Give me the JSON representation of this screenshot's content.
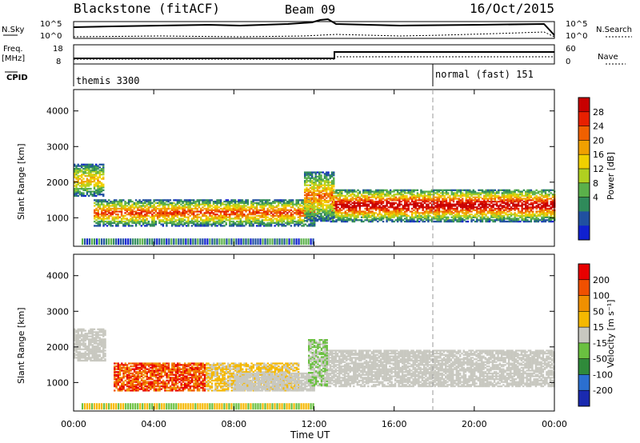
{
  "header": {
    "title": "Blackstone (fitACF)",
    "beam": "Beam 09",
    "date": "16/Oct/2015"
  },
  "top_panels": {
    "nsky_label": "N.Sky",
    "nsky_ticks": [
      "10^5",
      "10^0"
    ],
    "nsearch_label": "N.Search",
    "nsearch_ticks": [
      "10^5",
      "10^0"
    ],
    "freq_label": "Freq.",
    "freq_unit": "[MHz]",
    "freq_ticks": [
      "18",
      "8"
    ],
    "nave_label": "Nave",
    "nave_ticks": [
      "60",
      "0"
    ],
    "cpid_label": "CPID",
    "cpid_segments": [
      {
        "label": "themis 3300",
        "start_hour": 0
      },
      {
        "label": "normal (fast) 151",
        "start_hour": 18
      }
    ]
  },
  "chart_data": [
    {
      "type": "heatmap",
      "title": "",
      "ylabel": "Slant Range [km]",
      "xlabel": "",
      "yticks": [
        1000,
        2000,
        3000,
        4000
      ],
      "ylim": [
        200,
        4600
      ],
      "xlim": [
        0,
        24
      ],
      "colorbar": {
        "label": "Power [dB]",
        "ticks": [
          "4",
          "8",
          "12",
          "16",
          "20",
          "24",
          "28"
        ],
        "colors": [
          "#1020d0",
          "#2050a0",
          "#2f8a5a",
          "#5ab04a",
          "#b0d020",
          "#f0d000",
          "#f0a000",
          "#f06000",
          "#e82000",
          "#c80000"
        ]
      },
      "bands": [
        {
          "x": [
            1.0,
            12.0
          ],
          "y": [
            750,
            1500
          ],
          "level": "mid"
        },
        {
          "x": [
            12.8,
            24.0
          ],
          "y": [
            900,
            1800
          ],
          "level": "high"
        },
        {
          "x": [
            0.0,
            1.5
          ],
          "y": [
            1600,
            2500
          ],
          "level": "mid"
        }
      ]
    },
    {
      "type": "heatmap",
      "title": "",
      "ylabel": "Slant Range [km]",
      "xlabel": "Time UT",
      "yticks": [
        1000,
        2000,
        3000,
        4000
      ],
      "ylim": [
        200,
        4600
      ],
      "xlim": [
        0,
        24
      ],
      "xtick_labels": [
        "00:00",
        "04:00",
        "08:00",
        "12:00",
        "16:00",
        "20:00",
        "00:00"
      ],
      "colorbar": {
        "label": "Velocity [m s⁻¹]",
        "ticks": [
          "200",
          "100",
          "50",
          "15",
          "-15",
          "-50",
          "-100",
          "-200"
        ],
        "colors": [
          "#1a2ab0",
          "#2b6fd0",
          "#2f8a3a",
          "#6ac040",
          "#c8c8c0",
          "#f5b800",
          "#f09000",
          "#f05000",
          "#e80000"
        ]
      }
    }
  ]
}
